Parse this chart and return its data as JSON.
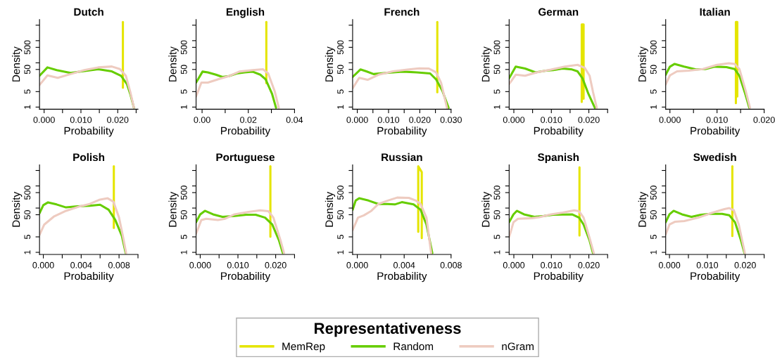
{
  "chart_data": [
    {
      "type": "line",
      "title": "Dutch",
      "xlabel": "Probability",
      "ylabel": "Density",
      "log": "y",
      "legend": "bottom",
      "legend_title": "Representativeness",
      "xlim": [
        -0.00125,
        0.0255
      ],
      "ylim": [
        0.8,
        9000
      ],
      "xticks": [
        {
          "value": 0,
          "label": "0.000"
        },
        {
          "value": 0.005,
          "label": null
        },
        {
          "value": 0.01,
          "label": "0.010"
        },
        {
          "value": 0.015,
          "label": null
        },
        {
          "value": 0.02,
          "label": "0.020"
        },
        {
          "value": 0.025,
          "label": null
        }
      ],
      "yticks": [
        1,
        5,
        50,
        {
          "value": 100,
          "label": null
        },
        500,
        {
          "value": 1000,
          "label": null
        },
        {
          "value": 5000,
          "label": null
        }
      ],
      "series": [
        {
          "name": "MemRep",
          "color": "#e5e500",
          "x": [
            0.0214,
            0.0214
          ],
          "values": [
            7.5,
            7000
          ]
        },
        {
          "name": "Random",
          "color": "#66cd00",
          "x": [
            -0.00125,
            0.0009,
            0.0034,
            0.0072,
            0.0103,
            0.0147,
            0.0184,
            0.0209,
            0.0225,
            0.0234,
            0.0244
          ],
          "values": [
            26,
            62,
            47,
            35,
            41,
            51,
            41,
            26,
            11,
            3.9,
            0.93
          ]
        },
        {
          "name": "nGram",
          "color": "#eecbc0",
          "x": [
            -0.00125,
            0.0009,
            0.0037,
            0.0072,
            0.0109,
            0.0147,
            0.0184,
            0.0206,
            0.0222,
            0.0234,
            0.0244
          ],
          "values": [
            10,
            27,
            21,
            31,
            47,
            62,
            68,
            52,
            26,
            4.9,
            0.93
          ]
        }
      ]
    },
    {
      "type": "line",
      "title": "English",
      "xlabel": "Probability",
      "ylabel": "Density",
      "log": "y",
      "legend": "bottom",
      "xlim": [
        -0.0026,
        0.04
      ],
      "ylim": [
        0.8,
        9000
      ],
      "xticks": [
        {
          "value": 0,
          "label": "0.00"
        },
        {
          "value": 0.01,
          "label": null
        },
        {
          "value": 0.02,
          "label": "0.02"
        },
        {
          "value": 0.03,
          "label": null
        },
        {
          "value": 0.04,
          "label": "0.04"
        }
      ],
      "yticks": [
        1,
        5,
        50,
        {
          "value": 100,
          "label": null
        },
        500,
        {
          "value": 1000,
          "label": null
        },
        {
          "value": 5000,
          "label": null
        }
      ],
      "series": [
        {
          "name": "MemRep",
          "color": "#e5e500",
          "x": [
            0.0278,
            0.0278
          ],
          "values": [
            12,
            7000
          ]
        },
        {
          "name": "Random",
          "color": "#66cd00",
          "x": [
            -0.0026,
            0.0002,
            0.0025,
            0.006,
            0.0088,
            0.0116,
            0.015,
            0.0184,
            0.0218,
            0.0252,
            0.0275,
            0.0303,
            0.032
          ],
          "values": [
            12.7,
            40,
            37,
            29,
            23,
            25,
            33,
            37,
            40,
            29,
            18,
            3.9,
            0.93
          ]
        },
        {
          "name": "nGram",
          "color": "#eecbc0",
          "x": [
            -0.0026,
            -0.0003,
            0.0025,
            0.007,
            0.0116,
            0.0161,
            0.0218,
            0.0264,
            0.0286,
            0.0315,
            0.0332
          ],
          "values": [
            3.05,
            12.7,
            12.7,
            18,
            25,
            40,
            47,
            51,
            33,
            4.9,
            0.93
          ]
        }
      ]
    },
    {
      "type": "line",
      "title": "French",
      "xlabel": "Probability",
      "ylabel": "Density",
      "log": "y",
      "legend": "bottom",
      "xlim": [
        -0.0015,
        0.03
      ],
      "ylim": [
        0.8,
        9000
      ],
      "xticks": [
        {
          "value": 0,
          "label": "0.000"
        },
        {
          "value": 0.005,
          "label": null
        },
        {
          "value": 0.01,
          "label": "0.010"
        },
        {
          "value": 0.015,
          "label": null
        },
        {
          "value": 0.02,
          "label": "0.020"
        },
        {
          "value": 0.025,
          "label": null
        },
        {
          "value": 0.03,
          "label": "0.030"
        }
      ],
      "yticks": [
        1,
        5,
        50,
        {
          "value": 100,
          "label": null
        },
        500,
        {
          "value": 1000,
          "label": null
        },
        {
          "value": 5000,
          "label": null
        }
      ],
      "series": [
        {
          "name": "MemRep",
          "color": "#e5e500",
          "x": [
            0.0256,
            0.0256
          ],
          "values": [
            4.7,
            7000
          ]
        },
        {
          "name": "Random",
          "color": "#66cd00",
          "x": [
            -0.0015,
            0.001,
            0.0029,
            0.0052,
            0.0091,
            0.0145,
            0.0191,
            0.0233,
            0.0252,
            0.0272,
            0.0292
          ],
          "values": [
            23,
            50,
            41,
            31,
            35,
            40,
            37,
            33,
            18,
            5.5,
            0.93
          ]
        },
        {
          "name": "nGram",
          "color": "#eecbc0",
          "x": [
            -0.0015,
            0.0006,
            0.0033,
            0.0068,
            0.0114,
            0.016,
            0.0198,
            0.0229,
            0.0252,
            0.0268,
            0.0287
          ],
          "values": [
            7,
            21,
            17,
            29,
            41,
            49,
            56,
            55,
            37,
            12.7,
            0.93
          ]
        }
      ]
    },
    {
      "type": "line",
      "title": "German",
      "xlabel": "Probability",
      "ylabel": "Density",
      "log": "y",
      "legend": "bottom",
      "xlim": [
        -0.00125,
        0.025
      ],
      "ylim": [
        0.8,
        9000
      ],
      "xticks": [
        {
          "value": 0,
          "label": "0.000"
        },
        {
          "value": 0.005,
          "label": null
        },
        {
          "value": 0.01,
          "label": "0.010"
        },
        {
          "value": 0.015,
          "label": null
        },
        {
          "value": 0.02,
          "label": "0.020"
        },
        {
          "value": 0.025,
          "label": null
        }
      ],
      "yticks": [
        1,
        5,
        50,
        {
          "value": 100,
          "label": null
        },
        500,
        {
          "value": 1000,
          "label": null
        },
        {
          "value": 5000,
          "label": null
        }
      ],
      "series": [
        {
          "name": "MemRep",
          "color": "#e5e500",
          "x": [
            0.0181,
            0.0181,
            0.0186,
            0.0186
          ],
          "values": [
            1.7,
            5400,
            5400,
            2.4
          ]
        },
        {
          "name": "Random",
          "color": "#66cd00",
          "x": [
            -0.00125,
            0.0005,
            0.003,
            0.0058,
            0.0086,
            0.0105,
            0.013,
            0.0155,
            0.017,
            0.0183,
            0.0199,
            0.0216
          ],
          "values": [
            20,
            67,
            55,
            37,
            44,
            47,
            55,
            50,
            41,
            20,
            3.9,
            0.93
          ]
        },
        {
          "name": "nGram",
          "color": "#eecbc0",
          "x": [
            -0.00125,
            0.0005,
            0.003,
            0.0061,
            0.0099,
            0.0136,
            0.017,
            0.0189,
            0.0202,
            0.0211,
            0.0221
          ],
          "values": [
            11,
            29,
            26,
            37,
            49,
            67,
            81,
            59,
            26,
            4.9,
            0.93
          ]
        }
      ]
    },
    {
      "type": "line",
      "title": "Italian",
      "xlabel": "Probability",
      "ylabel": "Density",
      "log": "y",
      "legend": "bottom",
      "xlim": [
        -0.0009,
        0.02
      ],
      "ylim": [
        0.8,
        9000
      ],
      "xticks": [
        {
          "value": 0,
          "label": "0.000"
        },
        {
          "value": 0.005,
          "label": null
        },
        {
          "value": 0.01,
          "label": "0.010"
        },
        {
          "value": 0.015,
          "label": null
        },
        {
          "value": 0.02,
          "label": "0.020"
        }
      ],
      "yticks": [
        1,
        5,
        50,
        {
          "value": 100,
          "label": null
        },
        500,
        {
          "value": 1000,
          "label": null
        },
        {
          "value": 5000,
          "label": null
        }
      ],
      "series": [
        {
          "name": "MemRep",
          "color": "#e5e500",
          "x": [
            0.014,
            0.014,
            0.0143,
            0.0143
          ],
          "values": [
            1.5,
            7000,
            7000,
            3
          ]
        },
        {
          "name": "Random",
          "color": "#66cd00",
          "x": [
            -0.0009,
            0,
            0.001,
            0.003,
            0.0055,
            0.0075,
            0.0095,
            0.012,
            0.01375,
            0.01475,
            0.016,
            0.01685
          ],
          "values": [
            29,
            67,
            89,
            67,
            50,
            52,
            67,
            64,
            52,
            26,
            3.9,
            0.93
          ]
        },
        {
          "name": "nGram",
          "color": "#eecbc0",
          "x": [
            -0.0009,
            0,
            0.0015,
            0.004,
            0.007,
            0.01,
            0.0125,
            0.01375,
            0.01475,
            0.016,
            0.017
          ],
          "values": [
            10.5,
            27,
            41,
            44,
            52,
            81,
            95,
            89,
            52,
            6.2,
            0.93
          ]
        }
      ]
    },
    {
      "type": "line",
      "title": "Polish",
      "xlabel": "Probability",
      "ylabel": "Density",
      "log": "y",
      "legend": "bottom",
      "xlim": [
        -0.0004,
        0.01
      ],
      "ylim": [
        0.8,
        9000
      ],
      "xticks": [
        {
          "value": 0,
          "label": "0.000"
        },
        {
          "value": 0.002,
          "label": null
        },
        {
          "value": 0.004,
          "label": "0.004"
        },
        {
          "value": 0.006,
          "label": null
        },
        {
          "value": 0.008,
          "label": "0.008"
        },
        {
          "value": 0.01,
          "label": null
        }
      ],
      "yticks": [
        1,
        5,
        50,
        {
          "value": 100,
          "label": null
        },
        500,
        {
          "value": 1000,
          "label": null
        },
        {
          "value": 5000,
          "label": null
        }
      ],
      "series": [
        {
          "name": "MemRep",
          "color": "#e5e500",
          "x": [
            0.00745,
            0.00745
          ],
          "values": [
            12.7,
            7700
          ]
        },
        {
          "name": "Random",
          "color": "#66cd00",
          "x": [
            -0.0004,
            0,
            0.0005,
            0.0014,
            0.0024,
            0.0036,
            0.0049,
            0.006,
            0.0069,
            0.0076,
            0.0083,
            0.0087
          ],
          "values": [
            59,
            136,
            181,
            146,
            107,
            121,
            127,
            142,
            84,
            29,
            5.5,
            0.93
          ]
        },
        {
          "name": "nGram",
          "color": "#eecbc0",
          "x": [
            -0.0004,
            0.0001,
            0.0011,
            0.0024,
            0.0039,
            0.0049,
            0.0059,
            0.0068,
            0.0074,
            0.008,
            0.0084,
            0.00875
          ],
          "values": [
            6.2,
            18,
            41,
            75,
            121,
            153,
            235,
            277,
            195,
            37,
            5.5,
            0.93
          ]
        }
      ]
    },
    {
      "type": "line",
      "title": "Portuguese",
      "xlabel": "Probability",
      "ylabel": "Density",
      "log": "y",
      "legend": "bottom",
      "xlim": [
        -0.0011,
        0.025
      ],
      "ylim": [
        0.8,
        9000
      ],
      "xticks": [
        {
          "value": 0,
          "label": "0.000"
        },
        {
          "value": 0.005,
          "label": null
        },
        {
          "value": 0.01,
          "label": "0.010"
        },
        {
          "value": 0.015,
          "label": null
        },
        {
          "value": 0.02,
          "label": "0.020"
        },
        {
          "value": 0.025,
          "label": null
        }
      ],
      "yticks": [
        1,
        5,
        50,
        {
          "value": 100,
          "label": null
        },
        500,
        {
          "value": 1000,
          "label": null
        },
        {
          "value": 5000,
          "label": null
        }
      ],
      "series": [
        {
          "name": "MemRep",
          "color": "#e5e500",
          "x": [
            0.0186,
            0.0186
          ],
          "values": [
            5.1,
            7700
          ]
        },
        {
          "name": "Random",
          "color": "#66cd00",
          "x": [
            -0.0011,
            0,
            0.00125,
            0.0034,
            0.0059,
            0.0091,
            0.0122,
            0.0147,
            0.0172,
            0.0191,
            0.0209,
            0.0219
          ],
          "values": [
            23,
            52,
            75,
            52,
            40,
            44,
            50,
            50,
            37,
            18,
            3.4,
            0.93
          ]
        },
        {
          "name": "nGram",
          "color": "#eecbc0",
          "x": [
            -0.0011,
            0.0003,
            0.0016,
            0.0047,
            0.0066,
            0.0091,
            0.0128,
            0.0159,
            0.0181,
            0.0194,
            0.0213,
            0.0222
          ],
          "values": [
            7,
            29,
            33,
            29,
            33,
            52,
            67,
            79,
            72,
            37,
            3.4,
            0.93
          ]
        }
      ]
    },
    {
      "type": "line",
      "title": "Russian",
      "xlabel": "Probability",
      "ylabel": "Density",
      "log": "y",
      "legend": "bottom",
      "xlim": [
        -0.0004,
        0.008
      ],
      "ylim": [
        0.8,
        9000
      ],
      "xticks": [
        {
          "value": 0,
          "label": "0.000"
        },
        {
          "value": 0.002,
          "label": null
        },
        {
          "value": 0.004,
          "label": "0.004"
        },
        {
          "value": 0.006,
          "label": null
        },
        {
          "value": 0.008,
          "label": "0.008"
        }
      ],
      "yticks": [
        1,
        5,
        50,
        {
          "value": 100,
          "label": null
        },
        500,
        {
          "value": 1000,
          "label": null
        },
        {
          "value": 5000,
          "label": null
        }
      ],
      "series": [
        {
          "name": "MemRep",
          "color": "#e5e500",
          "x": [
            0.0052,
            0.0052,
            0.0055,
            0.0055
          ],
          "values": [
            8.5,
            7700,
            4200,
            4.4
          ]
        },
        {
          "name": "Random",
          "color": "#66cd00",
          "x": [
            -0.0004,
            -0.00014,
            0.00016,
            0.00096,
            0.0018,
            0.0026,
            0.0032,
            0.0038,
            0.0048,
            0.0054,
            0.0059,
            0.0064
          ],
          "values": [
            84,
            218,
            277,
            218,
            153,
            153,
            146,
            185,
            146,
            84,
            18,
            0.93
          ]
        },
        {
          "name": "nGram",
          "color": "#eecbc0",
          "x": [
            -0.0004,
            6e-05,
            0.00056,
            0.0012,
            0.0018,
            0.0026,
            0.0034,
            0.0044,
            0.005,
            0.0054,
            0.0059,
            0.0063
          ],
          "values": [
            10,
            37,
            47,
            75,
            153,
            218,
            297,
            290,
            218,
            153,
            37,
            0.93
          ]
        }
      ]
    },
    {
      "type": "line",
      "title": "Spanish",
      "xlabel": "Probability",
      "ylabel": "Density",
      "log": "y",
      "legend": "bottom",
      "xlim": [
        -0.00125,
        0.025
      ],
      "ylim": [
        0.8,
        9000
      ],
      "xticks": [
        {
          "value": 0,
          "label": "0.000"
        },
        {
          "value": 0.005,
          "label": null
        },
        {
          "value": 0.01,
          "label": "0.010"
        },
        {
          "value": 0.015,
          "label": null
        },
        {
          "value": 0.02,
          "label": "0.020"
        },
        {
          "value": 0.025,
          "label": null
        }
      ],
      "yticks": [
        1,
        5,
        50,
        {
          "value": 100,
          "label": null
        },
        500,
        {
          "value": 1000,
          "label": null
        },
        {
          "value": 5000,
          "label": null
        }
      ],
      "series": [
        {
          "name": "MemRep",
          "color": "#e5e500",
          "x": [
            0.0175,
            0.0175
          ],
          "values": [
            5.8,
            6900
          ]
        },
        {
          "name": "Random",
          "color": "#66cd00",
          "x": [
            -0.00125,
            -0.0001,
            0.0008,
            0.0027,
            0.0055,
            0.008,
            0.0105,
            0.0155,
            0.0174,
            0.0186,
            0.0202,
            0.0211
          ],
          "values": [
            23,
            52,
            75,
            52,
            40,
            44,
            50,
            52,
            37,
            18,
            3.4,
            0.93
          ]
        },
        {
          "name": "nGram",
          "color": "#eecbc0",
          "x": [
            -0.00125,
            -0.0001,
            0.0011,
            0.0049,
            0.0068,
            0.0099,
            0.013,
            0.0161,
            0.0174,
            0.0186,
            0.0202,
            0.0213
          ],
          "values": [
            4.9,
            23,
            33,
            35,
            39,
            52,
            62,
            79,
            72,
            37,
            4.4,
            0.93
          ]
        }
      ]
    },
    {
      "type": "line",
      "title": "Swedish",
      "xlabel": "Probability",
      "ylabel": "Density",
      "log": "y",
      "legend": "bottom",
      "xlim": [
        -0.001,
        0.025
      ],
      "ylim": [
        0.8,
        9000
      ],
      "xticks": [
        {
          "value": 0,
          "label": "0.000"
        },
        {
          "value": 0.005,
          "label": null
        },
        {
          "value": 0.01,
          "label": "0.010"
        },
        {
          "value": 0.015,
          "label": null
        },
        {
          "value": 0.02,
          "label": "0.020"
        },
        {
          "value": 0.025,
          "label": null
        }
      ],
      "yticks": [
        1,
        5,
        50,
        {
          "value": 100,
          "label": null
        },
        500,
        {
          "value": 1000,
          "label": null
        },
        {
          "value": 5000,
          "label": null
        }
      ],
      "series": [
        {
          "name": "MemRep",
          "color": "#e5e500",
          "x": [
            0.0166,
            0.0166
          ],
          "values": [
            5.5,
            7700
          ]
        },
        {
          "name": "Random",
          "color": "#66cd00",
          "x": [
            -0.001,
            0,
            0.0011,
            0.0033,
            0.0058,
            0.0083,
            0.0108,
            0.0139,
            0.0158,
            0.0173,
            0.0189,
            0.0198
          ],
          "values": [
            23,
            52,
            75,
            52,
            40,
            50,
            55,
            55,
            47,
            23,
            3.4,
            0.93
          ]
        },
        {
          "name": "nGram",
          "color": "#eecbc0",
          "x": [
            -0.001,
            0,
            0.0014,
            0.0039,
            0.0076,
            0.0114,
            0.0145,
            0.0158,
            0.017,
            0.0183,
            0.0192,
            0.0199
          ],
          "values": [
            6.5,
            18,
            24,
            26,
            37,
            62,
            90,
            100,
            79,
            18,
            3.4,
            0.93
          ]
        }
      ]
    }
  ]
}
